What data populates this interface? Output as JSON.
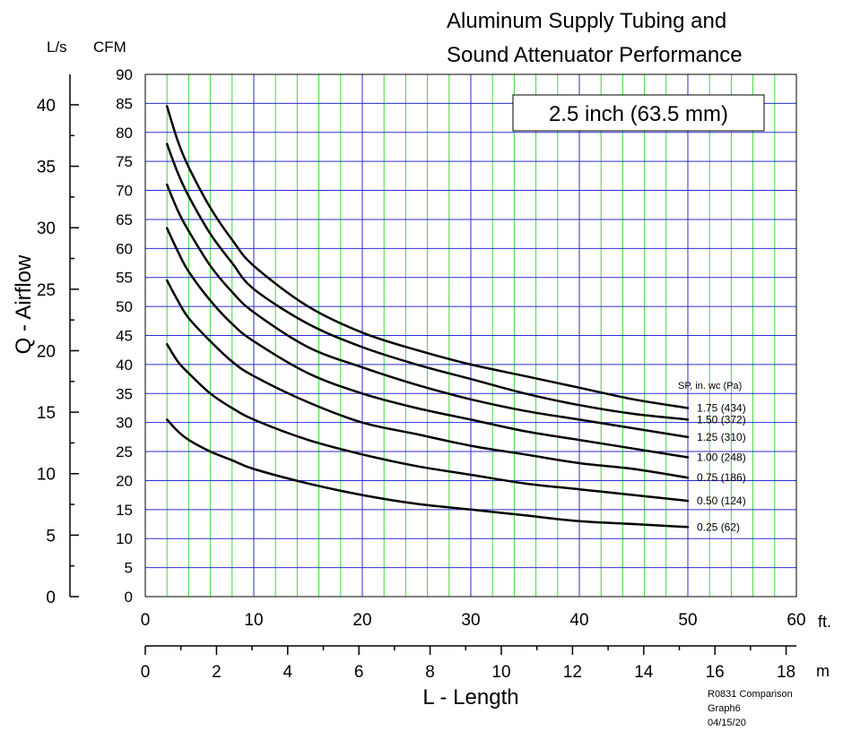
{
  "chart_data": {
    "type": "line",
    "title_line1": "Aluminum Supply Tubing and",
    "title_line2": "Sound Attenuator Performance",
    "size_box": "2.5 inch (63.5 mm)",
    "ylabel": "Q - Airflow",
    "xlabel": "L - Length",
    "y_unit_left": "L/s",
    "y_unit_right": "CFM",
    "x_unit_ft": "ft.",
    "x_unit_m": "m",
    "legend_title": "SP, in. wc (Pa)",
    "footer": [
      "R0831 Comparison",
      "Graph6",
      "04/15/20"
    ],
    "x_ft_range": [
      0,
      60
    ],
    "x_m_range": [
      0,
      18.288
    ],
    "y_cfm_range": [
      0,
      90
    ],
    "y_ls_range": [
      0,
      42.475
    ],
    "x_ft_ticks": [
      "0",
      "10",
      "20",
      "30",
      "40",
      "50",
      "60"
    ],
    "x_m_ticks": [
      "0",
      "2",
      "4",
      "6",
      "8",
      "10",
      "12",
      "14",
      "16",
      "18"
    ],
    "y_cfm_ticks": [
      "0",
      "5",
      "10",
      "15",
      "20",
      "25",
      "30",
      "35",
      "40",
      "45",
      "50",
      "55",
      "60",
      "65",
      "70",
      "75",
      "80",
      "85",
      "90"
    ],
    "y_ls_ticks": [
      "0",
      "5",
      "10",
      "15",
      "20",
      "25",
      "30",
      "35",
      "40"
    ],
    "grid": true,
    "grid_colors": {
      "major": "#2b2bd6",
      "minor_ft": "#3cd93c",
      "horizontal": "#2b2bd6"
    },
    "curve_color": "#000000",
    "series": [
      {
        "name": "1.75 (434)",
        "x": [
          2,
          3,
          4,
          6,
          8,
          10,
          15,
          20,
          25,
          30,
          35,
          40,
          45,
          50
        ],
        "y": [
          84.5,
          78.5,
          74,
          67,
          61.5,
          57,
          50,
          45.5,
          42.5,
          40,
          38,
          36,
          34,
          32.5
        ]
      },
      {
        "name": "1.50 (372)",
        "x": [
          2,
          3,
          4,
          6,
          8,
          10,
          15,
          20,
          25,
          30,
          35,
          40,
          45,
          50
        ],
        "y": [
          78,
          73,
          69,
          62.5,
          57.5,
          53,
          47,
          43,
          40,
          37.5,
          35,
          33,
          31.5,
          30.5
        ]
      },
      {
        "name": "1.25 (310)",
        "x": [
          2,
          3,
          4,
          6,
          8,
          10,
          15,
          20,
          25,
          30,
          35,
          40,
          45,
          50
        ],
        "y": [
          71,
          66.5,
          63,
          57,
          52.5,
          49,
          43,
          39.5,
          36.5,
          34,
          32,
          30.5,
          29,
          27.5
        ]
      },
      {
        "name": "1.00 (248)",
        "x": [
          2,
          3,
          4,
          6,
          8,
          10,
          15,
          20,
          25,
          30,
          35,
          40,
          45,
          50
        ],
        "y": [
          63.5,
          59.5,
          56,
          51,
          47,
          44,
          38.5,
          35,
          32.5,
          30.5,
          28.5,
          27,
          25.5,
          24
        ]
      },
      {
        "name": "0.75 (186)",
        "x": [
          2,
          3,
          4,
          6,
          8,
          10,
          15,
          20,
          25,
          30,
          35,
          40,
          45,
          50
        ],
        "y": [
          54.5,
          51,
          48,
          44,
          40.5,
          38,
          33.5,
          30,
          28,
          26,
          24.5,
          23,
          22,
          20.5
        ]
      },
      {
        "name": "0.50 (124)",
        "x": [
          2,
          3,
          4,
          6,
          8,
          10,
          15,
          20,
          25,
          30,
          35,
          40,
          45,
          50
        ],
        "y": [
          43.5,
          40.5,
          38.5,
          35,
          32.5,
          30.5,
          27,
          24.5,
          22.5,
          21,
          19.5,
          18.5,
          17.5,
          16.5
        ]
      },
      {
        "name": "0.25   (62)",
        "x": [
          2,
          3,
          4,
          6,
          8,
          10,
          15,
          20,
          25,
          30,
          35,
          40,
          45,
          50
        ],
        "y": [
          30.5,
          28.5,
          27,
          25,
          23.5,
          22,
          19.5,
          17.5,
          16,
          15,
          14,
          13,
          12.5,
          12
        ]
      }
    ]
  }
}
